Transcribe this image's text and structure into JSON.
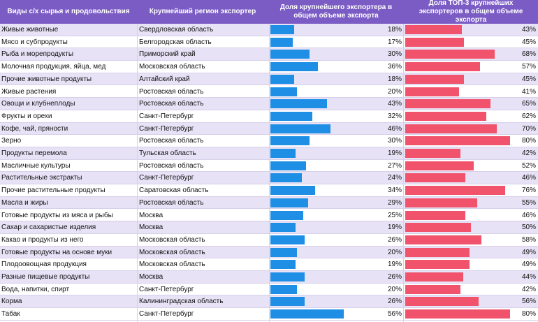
{
  "headers": {
    "col1": "Виды с/х сырья и продовольствия",
    "col2": "Крупнейший регион экспортер",
    "col3": "Доля крупнейшего экспортера в общем объеме экспорта",
    "col4": "Доля ТОП-3 крупнейших экспортеров в общем объеме экспорта"
  },
  "chart_data": {
    "type": "table",
    "columns": [
      "Виды с/х сырья и продовольствия",
      "Крупнейший регион экспортер",
      "Доля крупнейшего экспортера в общем объеме экспорта",
      "Доля ТОП-3 крупнейших экспортеров в общем объеме экспорта"
    ],
    "rows": [
      {
        "category": "Живые животные",
        "region": "Свердловская область",
        "top1": 18,
        "top3": 43
      },
      {
        "category": "Мясо и субпродукты",
        "region": "Белгородская область",
        "top1": 17,
        "top3": 45
      },
      {
        "category": "Рыба и морепродукты",
        "region": "Приморский край",
        "top1": 30,
        "top3": 68
      },
      {
        "category": "Молочная продукция, яйца, мед",
        "region": "Московская область",
        "top1": 36,
        "top3": 57
      },
      {
        "category": "Прочие животные продукты",
        "region": "Алтайский край",
        "top1": 18,
        "top3": 45
      },
      {
        "category": "Живые растения",
        "region": "Ростовская область",
        "top1": 20,
        "top3": 41
      },
      {
        "category": "Овощи и клубнеплоды",
        "region": "Ростовская область",
        "top1": 43,
        "top3": 65
      },
      {
        "category": "Фрукты и орехи",
        "region": "Санкт-Петербург",
        "top1": 32,
        "top3": 62
      },
      {
        "category": "Кофе, чай, пряности",
        "region": "Санкт-Петербург",
        "top1": 46,
        "top3": 70
      },
      {
        "category": "Зерно",
        "region": "Ростовская область",
        "top1": 30,
        "top3": 80
      },
      {
        "category": "Продукты перемола",
        "region": "Тульская область",
        "top1": 19,
        "top3": 42
      },
      {
        "category": "Масличные культуры",
        "region": "Ростовская область",
        "top1": 27,
        "top3": 52
      },
      {
        "category": "Растительные экстракты",
        "region": "Санкт-Петербург",
        "top1": 24,
        "top3": 46
      },
      {
        "category": "Прочие растительные продукты",
        "region": "Саратовская область",
        "top1": 34,
        "top3": 76
      },
      {
        "category": "Масла и жиры",
        "region": "Ростовская область",
        "top1": 29,
        "top3": 55
      },
      {
        "category": "Готовые продукты из мяса и рыбы",
        "region": "Москва",
        "top1": 25,
        "top3": 46
      },
      {
        "category": "Сахар и сахаристые изделия",
        "region": "Москва",
        "top1": 19,
        "top3": 50
      },
      {
        "category": "Какао и продукты из него",
        "region": "Московская область",
        "top1": 26,
        "top3": 58
      },
      {
        "category": "Готовые продукты на основе муки",
        "region": "Московская область",
        "top1": 20,
        "top3": 49
      },
      {
        "category": "Плодоовощная продукция",
        "region": "Московская область",
        "top1": 19,
        "top3": 49
      },
      {
        "category": "Разные пищевые продукты",
        "region": "Москва",
        "top1": 26,
        "top3": 44
      },
      {
        "category": "Вода, напитки, спирт",
        "region": "Санкт-Петербург",
        "top1": 20,
        "top3": 42
      },
      {
        "category": "Корма",
        "region": "Калининградская область",
        "top1": 26,
        "top3": 56
      },
      {
        "category": "Табак",
        "region": "Санкт-Петербург",
        "top1": 56,
        "top3": 80
      }
    ],
    "bar_max": 56
  },
  "colors": {
    "header": "#7b5cc4",
    "bar_top1": "#1f8fe6",
    "bar_top3": "#f0536b",
    "row_alt": "#e7e2f6"
  }
}
